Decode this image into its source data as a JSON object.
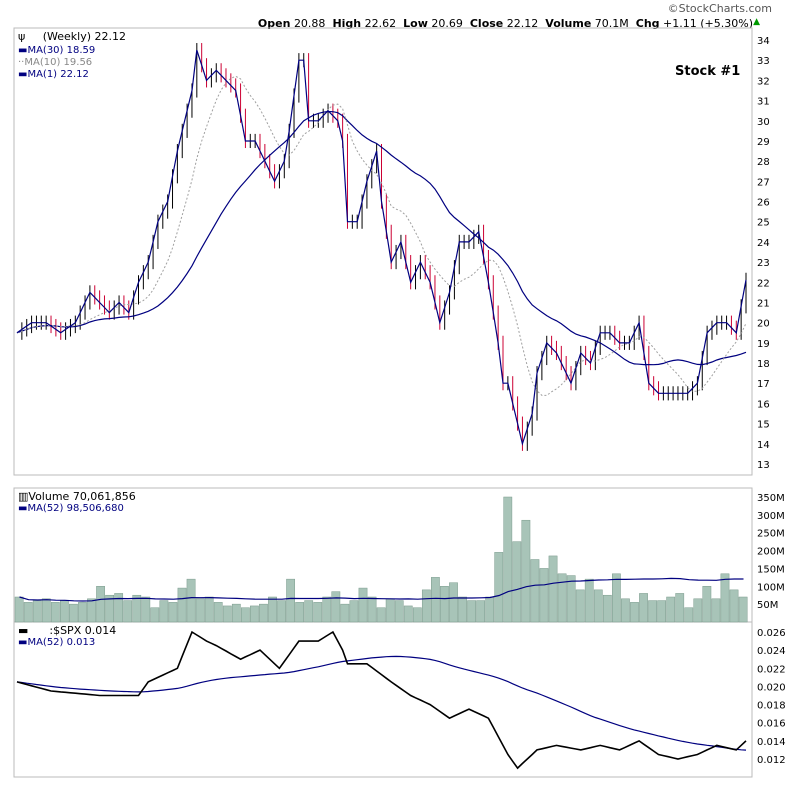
{
  "header": {
    "brand": "©StockCharts.com",
    "open_label": "Open",
    "open": "20.88",
    "high_label": "High",
    "high": "22.62",
    "low_label": "Low",
    "low": "20.69",
    "close_label": "Close",
    "close": "22.12",
    "volume_label": "Volume",
    "volume": "70.1M",
    "chg_label": "Chg",
    "chg": "+1.11 (+5.30%)"
  },
  "price_panel": {
    "title": "(Weekly) 22.12",
    "ma30": "MA(30) 18.59",
    "ma10": "MA(10) 19.56",
    "ma1": "MA(1) 22.12",
    "annotation": "Stock #1"
  },
  "volume_panel": {
    "title": "Volume 70,061,856",
    "ma": "MA(52) 98,506,680"
  },
  "ratio_panel": {
    "title": ":$SPX 0.014",
    "ma": "MA(52) 0.013"
  },
  "colors": {
    "price_line": "#000080",
    "ma10": "#a0a0a0",
    "up_bar": "#000000",
    "down_bar": "#cc0033",
    "volume_bar": "#a8c4b8",
    "ratio_line": "#000000"
  },
  "chart_data": [
    {
      "type": "line",
      "title": "Stock #1 (Weekly)",
      "x_unit": "week",
      "ylim": [
        13,
        34.5
      ],
      "yticks": [
        "34",
        "33",
        "32",
        "31",
        "30",
        "29",
        "28",
        "27",
        "26",
        "25",
        "24",
        "23",
        "22",
        "21",
        "20",
        "19",
        "18",
        "17",
        "16",
        "15",
        "14",
        "13"
      ],
      "closes": [
        [
          0,
          19.5
        ],
        [
          3,
          20
        ],
        [
          6,
          20
        ],
        [
          9,
          19.5
        ],
        [
          12,
          20
        ],
        [
          15,
          21.5
        ],
        [
          17,
          21
        ],
        [
          19,
          20.5
        ],
        [
          21,
          21
        ],
        [
          23,
          20.5
        ],
        [
          25,
          22
        ],
        [
          27,
          23
        ],
        [
          29,
          25
        ],
        [
          31,
          26
        ],
        [
          33,
          28.5
        ],
        [
          36,
          31.5
        ],
        [
          37,
          33.5
        ],
        [
          39,
          32
        ],
        [
          41,
          32.5
        ],
        [
          43,
          32
        ],
        [
          45,
          31.5
        ],
        [
          47,
          29
        ],
        [
          49,
          29
        ],
        [
          51,
          28
        ],
        [
          53,
          27
        ],
        [
          55,
          28
        ],
        [
          56,
          29.5
        ],
        [
          58,
          33
        ],
        [
          59,
          33
        ],
        [
          60,
          30
        ],
        [
          62,
          30
        ],
        [
          64,
          30.5
        ],
        [
          66,
          30
        ],
        [
          67,
          29
        ],
        [
          68,
          25
        ],
        [
          70,
          25
        ],
        [
          72,
          27
        ],
        [
          74,
          28.5
        ],
        [
          75,
          26
        ],
        [
          77,
          23
        ],
        [
          79,
          24
        ],
        [
          81,
          22
        ],
        [
          83,
          23
        ],
        [
          85,
          22
        ],
        [
          87,
          20
        ],
        [
          89,
          21.5
        ],
        [
          91,
          24
        ],
        [
          93,
          24
        ],
        [
          95,
          24.5
        ],
        [
          97,
          22
        ],
        [
          99,
          19
        ],
        [
          100,
          17
        ],
        [
          101,
          17
        ],
        [
          103,
          15
        ],
        [
          104,
          14
        ],
        [
          106,
          15.5
        ],
        [
          107,
          17.5
        ],
        [
          109,
          19
        ],
        [
          111,
          18.5
        ],
        [
          114,
          17
        ],
        [
          116,
          18.5
        ],
        [
          118,
          18
        ],
        [
          120,
          19.5
        ],
        [
          122,
          19.5
        ],
        [
          124,
          19
        ],
        [
          126,
          19
        ],
        [
          128,
          20
        ],
        [
          130,
          17
        ],
        [
          132,
          16.5
        ],
        [
          134,
          16.5
        ],
        [
          136,
          16.5
        ],
        [
          138,
          16.5
        ],
        [
          140,
          17
        ],
        [
          142,
          19.5
        ],
        [
          144,
          20
        ],
        [
          146,
          20
        ],
        [
          148,
          19.5
        ],
        [
          150,
          22.12
        ]
      ]
    },
    {
      "type": "bar",
      "title": "Volume",
      "unit": "M",
      "ylim": [
        0,
        370
      ],
      "yticks": [
        "350M",
        "300M",
        "250M",
        "200M",
        "150M",
        "100M",
        "50M"
      ],
      "values": [
        70,
        55,
        60,
        65,
        55,
        60,
        50,
        55,
        65,
        100,
        75,
        80,
        60,
        75,
        70,
        40,
        60,
        55,
        95,
        120,
        65,
        70,
        55,
        45,
        50,
        40,
        45,
        50,
        70,
        60,
        120,
        55,
        60,
        55,
        70,
        85,
        50,
        60,
        95,
        70,
        40,
        65,
        60,
        45,
        40,
        90,
        125,
        100,
        110,
        70,
        60,
        60,
        70,
        195,
        350,
        225,
        285,
        175,
        150,
        185,
        135,
        130,
        90,
        120,
        90,
        75,
        135,
        65,
        55,
        80,
        60,
        60,
        70,
        80,
        40,
        65,
        100,
        65,
        135,
        90,
        70
      ]
    },
    {
      "type": "line",
      "title": ":$SPX ratio",
      "ylim": [
        0.0105,
        0.0268
      ],
      "yticks": [
        "0.026",
        "0.024",
        "0.022",
        "0.020",
        "0.018",
        "0.016",
        "0.014",
        "0.012"
      ],
      "values": [
        [
          0,
          0.0205
        ],
        [
          7,
          0.0195
        ],
        [
          17,
          0.019
        ],
        [
          25,
          0.019
        ],
        [
          27,
          0.0205
        ],
        [
          33,
          0.022
        ],
        [
          36,
          0.026
        ],
        [
          39,
          0.025
        ],
        [
          41,
          0.0245
        ],
        [
          46,
          0.023
        ],
        [
          50,
          0.024
        ],
        [
          54,
          0.022
        ],
        [
          58,
          0.025
        ],
        [
          62,
          0.025
        ],
        [
          65,
          0.026
        ],
        [
          67,
          0.024
        ],
        [
          68,
          0.0225
        ],
        [
          72,
          0.0225
        ],
        [
          77,
          0.0205
        ],
        [
          81,
          0.019
        ],
        [
          85,
          0.018
        ],
        [
          89,
          0.0165
        ],
        [
          93,
          0.0175
        ],
        [
          97,
          0.0165
        ],
        [
          101,
          0.0125
        ],
        [
          103,
          0.011
        ],
        [
          107,
          0.013
        ],
        [
          111,
          0.0135
        ],
        [
          116,
          0.013
        ],
        [
          120,
          0.0135
        ],
        [
          124,
          0.013
        ],
        [
          128,
          0.014
        ],
        [
          132,
          0.0125
        ],
        [
          136,
          0.012
        ],
        [
          140,
          0.0125
        ],
        [
          144,
          0.0135
        ],
        [
          148,
          0.013
        ],
        [
          150,
          0.014
        ]
      ]
    }
  ]
}
